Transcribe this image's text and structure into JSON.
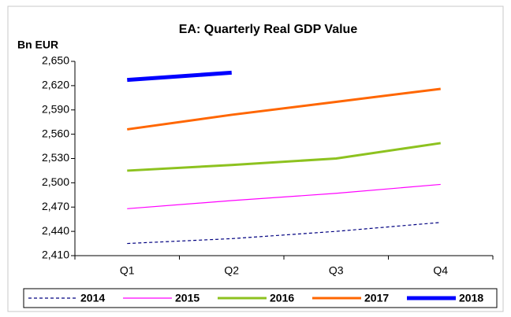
{
  "chart_data": {
    "type": "line",
    "title": "EA: Quarterly Real GDP Value",
    "y_label": "Bn EUR",
    "categories": [
      "Q1",
      "Q2",
      "Q3",
      "Q4"
    ],
    "series": [
      {
        "name": "2014",
        "color": "#000080",
        "width": 1.2,
        "dash": "4,3",
        "values": [
          2425,
          2431,
          2440,
          2451
        ]
      },
      {
        "name": "2015",
        "color": "#ff00ff",
        "width": 1.2,
        "values": [
          2468,
          2478,
          2487,
          2498
        ]
      },
      {
        "name": "2016",
        "color": "#8dc21f",
        "width": 3,
        "values": [
          2515,
          2522,
          2530,
          2549
        ]
      },
      {
        "name": "2017",
        "color": "#ff6600",
        "width": 3,
        "values": [
          2566,
          2584,
          2600,
          2616
        ]
      },
      {
        "name": "2018",
        "color": "#0000ff",
        "width": 5,
        "values": [
          2627,
          2636,
          null,
          null
        ]
      }
    ],
    "ylim": [
      2410,
      2650
    ],
    "yticks": [
      {
        "value": 2410,
        "label": "2,410"
      },
      {
        "value": 2440,
        "label": "2,440"
      },
      {
        "value": 2470,
        "label": "2,470"
      },
      {
        "value": 2500,
        "label": "2,500"
      },
      {
        "value": 2530,
        "label": "2,530"
      },
      {
        "value": 2560,
        "label": "2,560"
      },
      {
        "value": 2590,
        "label": "2,590"
      },
      {
        "value": 2620,
        "label": "2,620"
      },
      {
        "value": 2650,
        "label": "2,650"
      }
    ],
    "grid": false,
    "legend": "bottom"
  }
}
